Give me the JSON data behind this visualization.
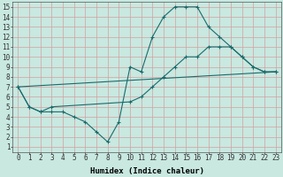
{
  "background_color": "#c8e8e0",
  "grid_color": "#aaccc4",
  "line_color": "#1a6b6b",
  "xlabel": "Humidex (Indice chaleur)",
  "xlim": [
    -0.5,
    23.5
  ],
  "ylim": [
    0.5,
    15.5
  ],
  "xticks": [
    0,
    1,
    2,
    3,
    4,
    5,
    6,
    7,
    8,
    9,
    10,
    11,
    12,
    13,
    14,
    15,
    16,
    17,
    18,
    19,
    20,
    21,
    22,
    23
  ],
  "yticks": [
    1,
    2,
    3,
    4,
    5,
    6,
    7,
    8,
    9,
    10,
    11,
    12,
    13,
    14,
    15
  ],
  "line1_x": [
    0,
    1,
    2,
    3,
    4,
    5,
    6,
    7,
    8,
    9,
    10,
    11,
    12,
    13,
    14,
    15,
    16,
    17,
    18,
    19,
    20,
    21,
    22,
    23
  ],
  "line1_y": [
    7,
    5,
    4.5,
    4.5,
    4.5,
    4,
    3.5,
    2.5,
    1.5,
    3.5,
    9,
    8.5,
    12,
    14,
    15,
    15,
    15,
    13,
    12,
    11,
    10,
    9,
    8.5,
    8.5
  ],
  "line2_x": [
    0,
    1,
    2,
    3,
    10,
    11,
    12,
    13,
    14,
    15,
    16,
    17,
    18,
    19,
    20,
    21,
    22,
    23
  ],
  "line2_y": [
    7,
    5,
    4.5,
    5,
    5.5,
    6,
    7,
    8,
    9,
    10,
    10,
    11,
    11,
    11,
    10,
    9,
    8.5,
    8.5
  ],
  "line3_x": [
    0,
    23
  ],
  "line3_y": [
    7,
    8.5
  ],
  "tick_fontsize": 5.5,
  "label_fontsize": 6.5
}
